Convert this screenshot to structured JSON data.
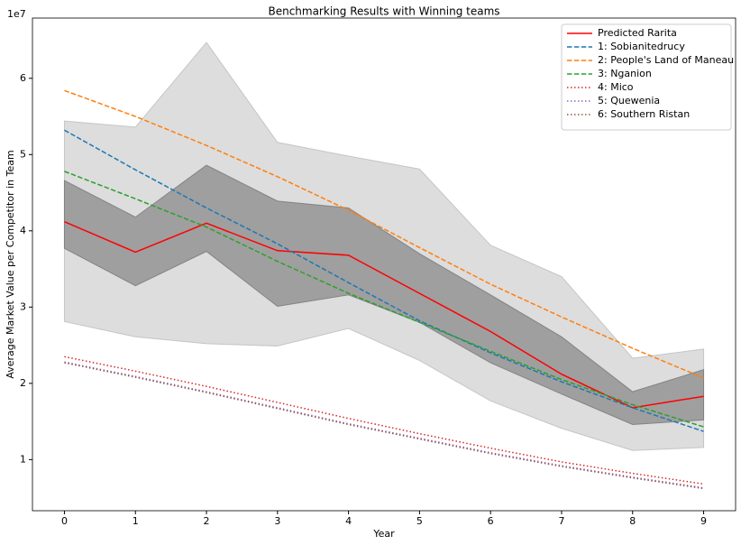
{
  "chart_data": {
    "type": "line",
    "title": "Benchmarking Results with Winning teams",
    "xlabel": "Year",
    "ylabel": "Average Market Value per Competitor in Team",
    "y_offset_label": "1e7",
    "x": [
      0,
      1,
      2,
      3,
      4,
      5,
      6,
      7,
      8,
      9
    ],
    "xlim": [
      -0.45,
      9.45
    ],
    "xticks": [
      0,
      1,
      2,
      3,
      4,
      5,
      6,
      7,
      8,
      9
    ],
    "ylim": [
      0.33,
      6.79
    ],
    "yticks": [
      1,
      2,
      3,
      4,
      5,
      6
    ],
    "legend": "upper right",
    "bands": [
      {
        "color": "#bbbbbb",
        "opacity": 0.5,
        "upper": [
          5.44,
          5.36,
          6.47,
          5.16,
          4.98,
          4.81,
          3.81,
          3.4,
          2.33,
          2.45
        ],
        "lower": [
          2.81,
          2.61,
          2.52,
          2.49,
          2.72,
          2.3,
          1.77,
          1.41,
          1.12,
          1.16
        ]
      },
      {
        "color": "#777777",
        "opacity": 0.6,
        "upper": [
          4.66,
          4.18,
          4.86,
          4.39,
          4.3,
          3.7,
          3.16,
          2.61,
          1.89,
          2.18
        ],
        "lower": [
          3.77,
          3.28,
          3.73,
          3.01,
          3.16,
          2.8,
          2.27,
          1.86,
          1.46,
          1.52
        ]
      }
    ],
    "series": [
      {
        "name": "Predicted Rarita",
        "color": "#ff0000",
        "dash": "solid",
        "values": [
          4.12,
          3.72,
          4.1,
          3.74,
          3.68,
          3.18,
          2.68,
          2.12,
          1.68,
          1.83
        ]
      },
      {
        "name": "1: Sobianitedrucy",
        "color": "#1f77b4",
        "dash": "dashed",
        "values": [
          5.32,
          4.8,
          4.3,
          3.83,
          3.32,
          2.82,
          2.4,
          2.02,
          1.68,
          1.37
        ]
      },
      {
        "name": "2: People's Land of Maneau",
        "color": "#ff7f0e",
        "dash": "dashed",
        "values": [
          5.84,
          5.5,
          5.12,
          4.71,
          4.27,
          3.78,
          3.3,
          2.87,
          2.46,
          2.07
        ]
      },
      {
        "name": "3: Nganion",
        "color": "#2ca02c",
        "dash": "dashed",
        "values": [
          4.78,
          4.42,
          4.05,
          3.6,
          3.18,
          2.8,
          2.42,
          2.05,
          1.72,
          1.43
        ]
      },
      {
        "name": "4: Mico",
        "color": "#d62728",
        "dash": "dotted",
        "values": [
          2.35,
          2.16,
          1.96,
          1.75,
          1.54,
          1.34,
          1.15,
          0.97,
          0.82,
          0.68
        ]
      },
      {
        "name": "5: Quewenia",
        "color": "#9467bd",
        "dash": "dotted",
        "values": [
          2.28,
          2.09,
          1.89,
          1.68,
          1.47,
          1.28,
          1.09,
          0.92,
          0.77,
          0.63
        ]
      },
      {
        "name": "6: Southern Ristan",
        "color": "#8c564b",
        "dash": "dotted",
        "values": [
          2.27,
          2.08,
          1.88,
          1.67,
          1.46,
          1.27,
          1.08,
          0.91,
          0.76,
          0.62
        ]
      }
    ]
  }
}
